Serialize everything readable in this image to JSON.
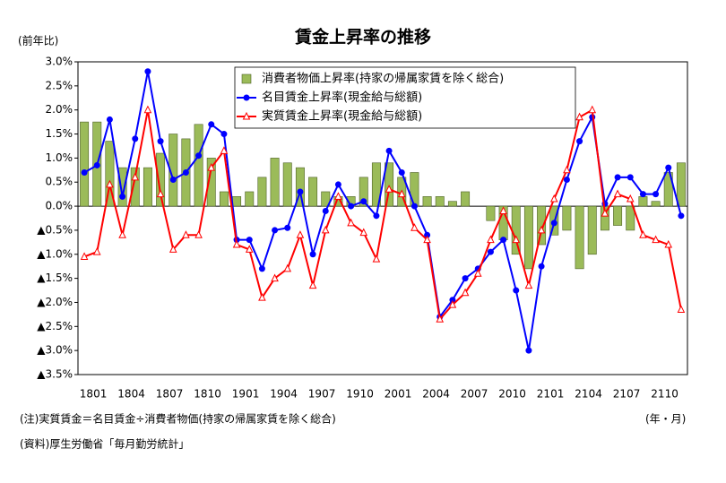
{
  "chart_data": {
    "type": "bar-line",
    "title": "賃金上昇率の推移",
    "y_axis_label": "(前年比)",
    "x_axis_label": "(年・月)",
    "notes": [
      "(注)実質賃金＝名目賃金÷消費者物価(持家の帰属家賃を除く総合)",
      "(資料)厚生労働省「毎月勤労統計」"
    ],
    "categories": [
      "1801",
      null,
      null,
      "1804",
      null,
      null,
      "1807",
      null,
      null,
      "1810",
      null,
      null,
      "1901",
      null,
      null,
      "1904",
      null,
      null,
      "1907",
      null,
      null,
      "1910",
      null,
      null,
      "2001",
      null,
      null,
      "2004",
      null,
      null,
      "2007",
      null,
      null,
      "2010",
      null,
      null,
      "2101",
      null,
      null,
      "2104",
      null,
      null,
      "2107",
      null,
      null,
      "2110",
      null,
      null
    ],
    "series": [
      {
        "name": "消費者物価上昇率(持家の帰属家賃を除く総合)",
        "type": "bar",
        "color": "#9bbb59",
        "values": [
          1.75,
          1.75,
          1.35,
          0.8,
          0.8,
          0.8,
          1.1,
          1.5,
          1.4,
          1.7,
          1.0,
          0.3,
          0.2,
          0.3,
          0.6,
          1.0,
          0.9,
          0.8,
          0.6,
          0.3,
          0.2,
          0.2,
          0.6,
          0.9,
          0.9,
          0.6,
          0.7,
          0.2,
          0.2,
          0.1,
          0.3,
          0.0,
          -0.3,
          -0.7,
          -1.0,
          -1.3,
          -0.8,
          -0.6,
          -0.5,
          -1.3,
          -1.0,
          -0.5,
          -0.4,
          -0.5,
          0.2,
          0.1,
          0.7,
          0.9
        ]
      },
      {
        "name": "名目賃金上昇率(現金給与総額)",
        "type": "line",
        "marker": "circle",
        "color": "#0000ff",
        "values": [
          0.7,
          0.85,
          1.8,
          0.2,
          1.4,
          2.8,
          1.35,
          0.55,
          0.7,
          1.05,
          1.7,
          1.5,
          -0.7,
          -0.7,
          -1.3,
          -0.5,
          -0.45,
          0.3,
          -1.0,
          -0.1,
          0.45,
          0.0,
          0.1,
          -0.2,
          1.15,
          0.7,
          0.0,
          -0.6,
          -2.3,
          -1.95,
          -1.5,
          -1.3,
          -0.95,
          -0.7,
          -1.75,
          -3.0,
          -1.25,
          -0.35,
          0.55,
          1.35,
          1.85,
          0.05,
          0.6,
          0.6,
          0.25,
          0.25,
          0.8,
          -0.2
        ]
      },
      {
        "name": "実質賃金上昇率(現金給与総額)",
        "type": "line",
        "marker": "triangle",
        "color": "#ff0000",
        "values": [
          -1.05,
          -0.95,
          0.45,
          -0.6,
          0.6,
          2.0,
          0.25,
          -0.9,
          -0.6,
          -0.6,
          0.8,
          1.15,
          -0.8,
          -0.9,
          -1.9,
          -1.5,
          -1.3,
          -0.6,
          -1.65,
          -0.5,
          0.2,
          -0.35,
          -0.55,
          -1.1,
          0.35,
          0.25,
          -0.45,
          -0.7,
          -2.35,
          -2.05,
          -1.8,
          -1.4,
          -0.7,
          -0.1,
          -0.7,
          -1.65,
          -0.5,
          0.15,
          0.75,
          1.85,
          2.0,
          -0.15,
          0.25,
          0.15,
          -0.6,
          -0.7,
          -0.8,
          -2.15
        ]
      }
    ],
    "ylim": [
      -3.5,
      3.0
    ],
    "yticks": [
      {
        "value": 3.0,
        "label": "3.0%"
      },
      {
        "value": 2.5,
        "label": "2.5%"
      },
      {
        "value": 2.0,
        "label": "2.0%"
      },
      {
        "value": 1.5,
        "label": "1.5%"
      },
      {
        "value": 1.0,
        "label": "1.0%"
      },
      {
        "value": 0.5,
        "label": "0.5%"
      },
      {
        "value": 0,
        "label": "0.0%"
      },
      {
        "value": -0.5,
        "label": "▲0.5%"
      },
      {
        "value": -1.0,
        "label": "▲1.0%"
      },
      {
        "value": -1.5,
        "label": "▲1.5%"
      },
      {
        "value": -2.0,
        "label": "▲2.0%"
      },
      {
        "value": -2.5,
        "label": "▲2.5%"
      },
      {
        "value": -3.0,
        "label": "▲3.0%"
      },
      {
        "value": -3.5,
        "label": "▲3.5%"
      }
    ],
    "legend": "upper right"
  }
}
